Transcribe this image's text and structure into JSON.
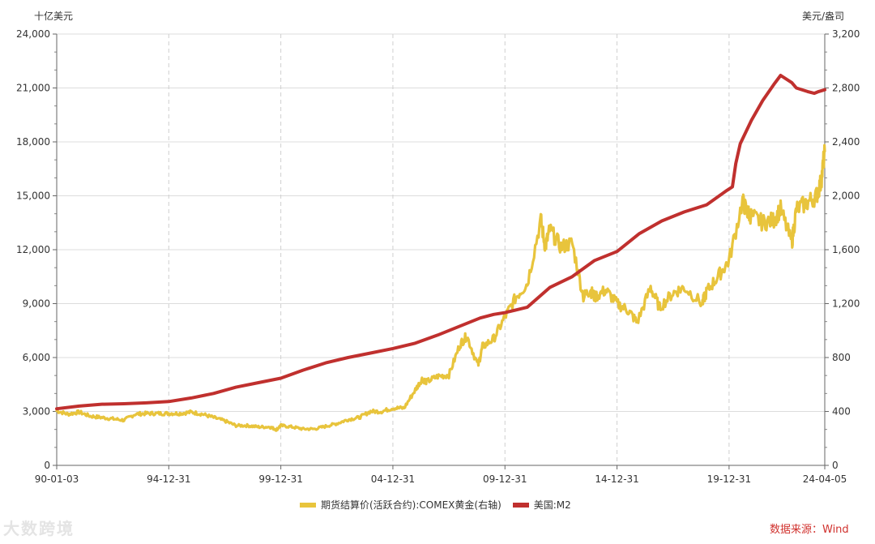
{
  "chart_data": {
    "type": "line",
    "left_unit": "十亿美元",
    "right_unit": "美元/盎司",
    "x_ticks": [
      "90-01-03",
      "94-12-31",
      "99-12-31",
      "04-12-31",
      "09-12-31",
      "14-12-31",
      "19-12-31",
      "24-04-05"
    ],
    "left_ticks": [
      "0",
      "3,000",
      "6,000",
      "9,000",
      "12,000",
      "15,000",
      "18,000",
      "21,000",
      "24,000"
    ],
    "right_ticks": [
      "0",
      "400",
      "800",
      "1,200",
      "1,600",
      "2,000",
      "2,400",
      "2,800",
      "3,200"
    ],
    "left_range": [
      0,
      24000
    ],
    "right_range": [
      0,
      3200
    ],
    "x_range": [
      1990.0,
      2024.27
    ],
    "grid": "horizontal solid, vertical dashed",
    "legend_position": "bottom",
    "series": [
      {
        "name": "期货结算价(活跃合约):COMEX黄金(右轴)",
        "axis": "right",
        "color": "#e8c43c",
        "x": [
          1990.0,
          1990.5,
          1991.0,
          1991.5,
          1992.0,
          1992.5,
          1993.0,
          1993.5,
          1994.0,
          1994.5,
          1995.0,
          1995.5,
          1996.0,
          1996.5,
          1997.0,
          1997.5,
          1998.0,
          1998.5,
          1999.0,
          1999.5,
          1999.8,
          2000.0,
          2000.5,
          2001.0,
          2001.5,
          2002.0,
          2002.5,
          2003.0,
          2003.5,
          2004.0,
          2004.5,
          2005.0,
          2005.5,
          2006.0,
          2006.3,
          2006.5,
          2007.0,
          2007.5,
          2008.0,
          2008.3,
          2008.8,
          2009.0,
          2009.5,
          2010.0,
          2010.5,
          2011.0,
          2011.6,
          2011.8,
          2012.0,
          2012.5,
          2013.0,
          2013.5,
          2013.8,
          2014.0,
          2014.5,
          2015.0,
          2015.5,
          2015.9,
          2016.5,
          2016.9,
          2017.5,
          2018.0,
          2018.8,
          2019.0,
          2019.5,
          2020.0,
          2020.6,
          2020.8,
          2021.0,
          2021.5,
          2022.0,
          2022.3,
          2022.8,
          2023.0,
          2023.5,
          2023.9,
          2024.1,
          2024.27
        ],
        "values": [
          405,
          380,
          395,
          365,
          355,
          345,
          335,
          380,
          385,
          385,
          385,
          385,
          395,
          380,
          355,
          330,
          295,
          295,
          285,
          285,
          265,
          295,
          285,
          270,
          270,
          290,
          310,
          340,
          355,
          400,
          400,
          425,
          425,
          560,
          640,
          620,
          660,
          670,
          900,
          960,
          740,
          880,
          940,
          1100,
          1250,
          1350,
          1820,
          1620,
          1750,
          1620,
          1650,
          1250,
          1300,
          1250,
          1300,
          1200,
          1150,
          1060,
          1320,
          1170,
          1280,
          1320,
          1200,
          1290,
          1400,
          1520,
          1960,
          1880,
          1850,
          1800,
          1820,
          1900,
          1650,
          1900,
          1950,
          2000,
          2100,
          2330
        ]
      },
      {
        "name": "美国:M2",
        "axis": "left",
        "color": "#c0302e",
        "x": [
          1990.0,
          1991.0,
          1992.0,
          1993.0,
          1994.0,
          1995.0,
          1996.0,
          1997.0,
          1998.0,
          1999.0,
          2000.0,
          2001.0,
          2002.0,
          2003.0,
          2004.0,
          2005.0,
          2006.0,
          2007.0,
          2008.0,
          2008.9,
          2009.5,
          2010.0,
          2011.0,
          2012.0,
          2013.0,
          2014.0,
          2015.0,
          2016.0,
          2017.0,
          2018.0,
          2019.0,
          2019.9,
          2020.15,
          2020.3,
          2020.5,
          2021.0,
          2021.5,
          2022.0,
          2022.3,
          2022.8,
          2023.0,
          2023.5,
          2023.8,
          2024.0,
          2024.27
        ],
        "values": [
          3150,
          3300,
          3400,
          3430,
          3480,
          3550,
          3750,
          4000,
          4350,
          4600,
          4850,
          5300,
          5700,
          6000,
          6250,
          6500,
          6800,
          7250,
          7750,
          8200,
          8400,
          8500,
          8800,
          9900,
          10500,
          11400,
          11900,
          12900,
          13600,
          14100,
          14500,
          15300,
          15500,
          16800,
          17900,
          19200,
          20300,
          21200,
          21700,
          21300,
          21000,
          20800,
          20700,
          20800,
          20900
        ]
      }
    ]
  },
  "legend": {
    "gold_label": "期货结算价(活跃合约):COMEX黄金(右轴)",
    "m2_label": "美国:M2"
  },
  "source": "数据来源：Wind",
  "watermark": "大数跨境"
}
